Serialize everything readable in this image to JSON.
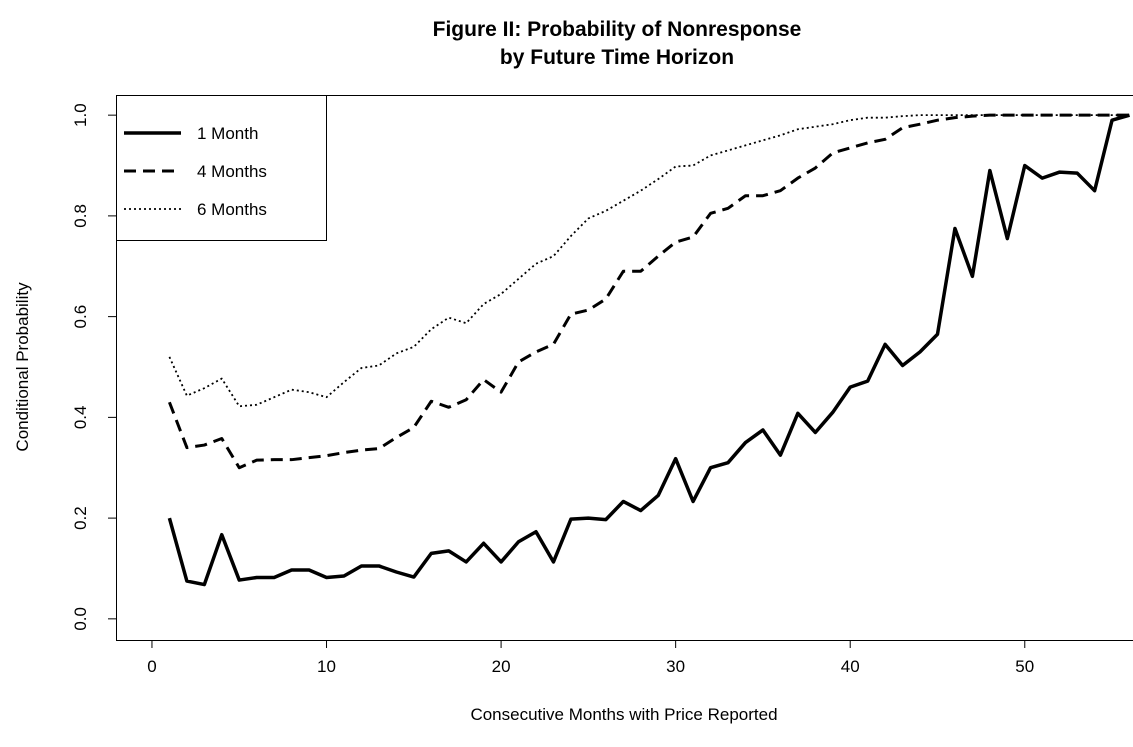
{
  "chart_data": {
    "type": "line",
    "title": [
      "Figure II: Probability of Nonresponse",
      "by Future Time Horizon"
    ],
    "x_label": "Consecutive Months with Price Reported",
    "y_label": "Conditional Probability",
    "x": [
      1,
      2,
      3,
      4,
      5,
      6,
      7,
      8,
      9,
      10,
      11,
      12,
      13,
      14,
      15,
      16,
      17,
      18,
      19,
      20,
      21,
      22,
      23,
      24,
      25,
      26,
      27,
      28,
      29,
      30,
      31,
      32,
      33,
      34,
      35,
      36,
      37,
      38,
      39,
      40,
      41,
      42,
      43,
      44,
      45,
      46,
      47,
      48,
      49,
      50,
      51,
      52,
      53,
      54,
      55,
      56
    ],
    "series": [
      {
        "name": "1 Month",
        "color": "#000000",
        "line_style": "solid",
        "values": [
          0.2,
          0.075,
          0.068,
          0.167,
          0.077,
          0.082,
          0.082,
          0.097,
          0.097,
          0.082,
          0.085,
          0.105,
          0.105,
          0.093,
          0.083,
          0.13,
          0.135,
          0.113,
          0.15,
          0.113,
          0.153,
          0.173,
          0.113,
          0.198,
          0.2,
          0.197,
          0.233,
          0.215,
          0.245,
          0.318,
          0.233,
          0.3,
          0.31,
          0.35,
          0.375,
          0.325,
          0.408,
          0.37,
          0.41,
          0.46,
          0.472,
          0.545,
          0.503,
          0.53,
          0.565,
          0.775,
          0.68,
          0.89,
          0.755,
          0.9,
          0.875,
          0.887,
          0.885,
          0.85,
          0.99,
          1.0
        ]
      },
      {
        "name": "4 Months",
        "color": "#000000",
        "line_style": "dashed",
        "values": [
          0.43,
          0.34,
          0.345,
          0.358,
          0.3,
          0.315,
          0.316,
          0.316,
          0.32,
          0.324,
          0.33,
          0.335,
          0.338,
          0.36,
          0.38,
          0.432,
          0.42,
          0.435,
          0.475,
          0.45,
          0.51,
          0.53,
          0.545,
          0.605,
          0.613,
          0.635,
          0.69,
          0.69,
          0.72,
          0.748,
          0.758,
          0.805,
          0.815,
          0.84,
          0.84,
          0.85,
          0.875,
          0.895,
          0.925,
          0.935,
          0.945,
          0.952,
          0.975,
          0.982,
          0.99,
          0.995,
          0.998,
          1.0,
          1.0,
          1.0,
          1.0,
          1.0,
          1.0,
          1.0,
          1.0,
          1.0
        ]
      },
      {
        "name": "6 Months",
        "color": "#000000",
        "line_style": "dotted",
        "values": [
          0.52,
          0.443,
          0.458,
          0.477,
          0.422,
          0.425,
          0.44,
          0.455,
          0.45,
          0.44,
          0.47,
          0.498,
          0.503,
          0.527,
          0.54,
          0.575,
          0.598,
          0.587,
          0.625,
          0.645,
          0.675,
          0.705,
          0.72,
          0.76,
          0.795,
          0.81,
          0.83,
          0.85,
          0.873,
          0.898,
          0.9,
          0.92,
          0.93,
          0.94,
          0.95,
          0.96,
          0.972,
          0.977,
          0.982,
          0.99,
          0.995,
          0.995,
          0.998,
          1.0,
          1.0,
          1.0,
          1.0,
          1.0,
          1.0,
          1.0,
          1.0,
          1.0,
          1.0,
          1.0,
          1.0,
          1.0
        ]
      }
    ],
    "xlim": [
      -2.06,
      56.2
    ],
    "ylim": [
      -0.042,
      1.04
    ],
    "xticks": [
      0,
      10,
      20,
      30,
      40,
      50
    ],
    "yticks": [
      {
        "value": 0,
        "label": "0.0"
      },
      {
        "value": 0.2,
        "label": "0.2"
      },
      {
        "value": 0.4,
        "label": "0.4"
      },
      {
        "value": 0.6,
        "label": "0.6"
      },
      {
        "value": 0.8,
        "label": "0.8"
      },
      {
        "value": 1,
        "label": "1.0"
      }
    ],
    "legend": "top-left",
    "grid": false
  }
}
